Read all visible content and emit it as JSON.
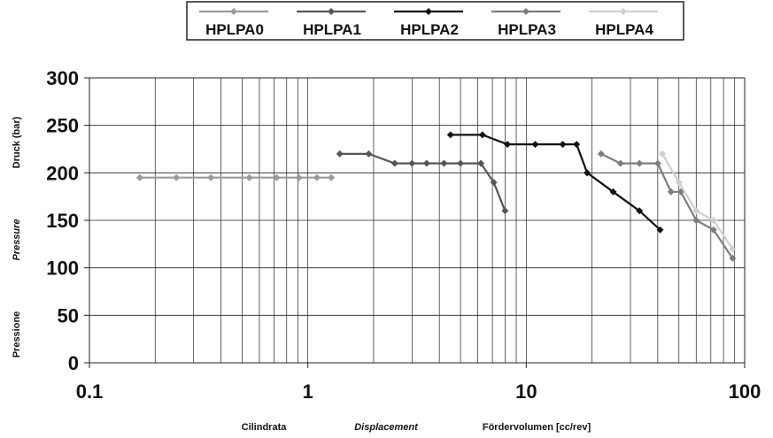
{
  "chart_data": {
    "type": "line",
    "x_scale": "log",
    "xlim": [
      0.1,
      100
    ],
    "ylim": [
      0,
      300
    ],
    "x_ticks": [
      0.1,
      1,
      10,
      100
    ],
    "x_tick_labels": [
      "0.1",
      "1",
      "10",
      "100"
    ],
    "y_ticks": [
      0,
      50,
      100,
      150,
      200,
      250,
      300
    ],
    "y_tick_labels": [
      "0",
      "50",
      "100",
      "150",
      "200",
      "250",
      "300"
    ],
    "grid": true,
    "legend_position": "top",
    "xlabels": [
      "Cilindrata",
      "Displacement",
      "Fördervolumen [cc/rev]"
    ],
    "ylabels": [
      "Druck (bar)",
      "Pressure",
      "Pressione"
    ],
    "series": [
      {
        "name": "HPLPA0",
        "color": "#9a9a9a",
        "x": [
          0.17,
          0.25,
          0.36,
          0.54,
          0.72,
          0.91,
          1.1,
          1.28
        ],
        "y": [
          195,
          195,
          195,
          195,
          195,
          195,
          195,
          195
        ]
      },
      {
        "name": "HPLPA1",
        "color": "#555555",
        "x": [
          1.4,
          1.9,
          2.5,
          3.0,
          3.5,
          4.2,
          5.0,
          6.2,
          7.1,
          8.0
        ],
        "y": [
          220,
          220,
          210,
          210,
          210,
          210,
          210,
          210,
          190,
          160
        ]
      },
      {
        "name": "HPLPA2",
        "color": "#111111",
        "x": [
          4.5,
          6.3,
          8.2,
          11,
          14.7,
          17,
          19,
          25,
          33,
          41
        ],
        "y": [
          240,
          240,
          230,
          230,
          230,
          230,
          200,
          180,
          160,
          140
        ]
      },
      {
        "name": "HPLPA3",
        "color": "#7d7d7d",
        "x": [
          22,
          27,
          33,
          40,
          46,
          51,
          60,
          72,
          88
        ],
        "y": [
          220,
          210,
          210,
          210,
          180,
          180,
          150,
          140,
          110
        ]
      },
      {
        "name": "HPLPA4",
        "color": "#cfcfcf",
        "x": [
          42,
          50,
          60,
          72,
          88
        ],
        "y": [
          220,
          190,
          160,
          150,
          120
        ]
      }
    ]
  }
}
